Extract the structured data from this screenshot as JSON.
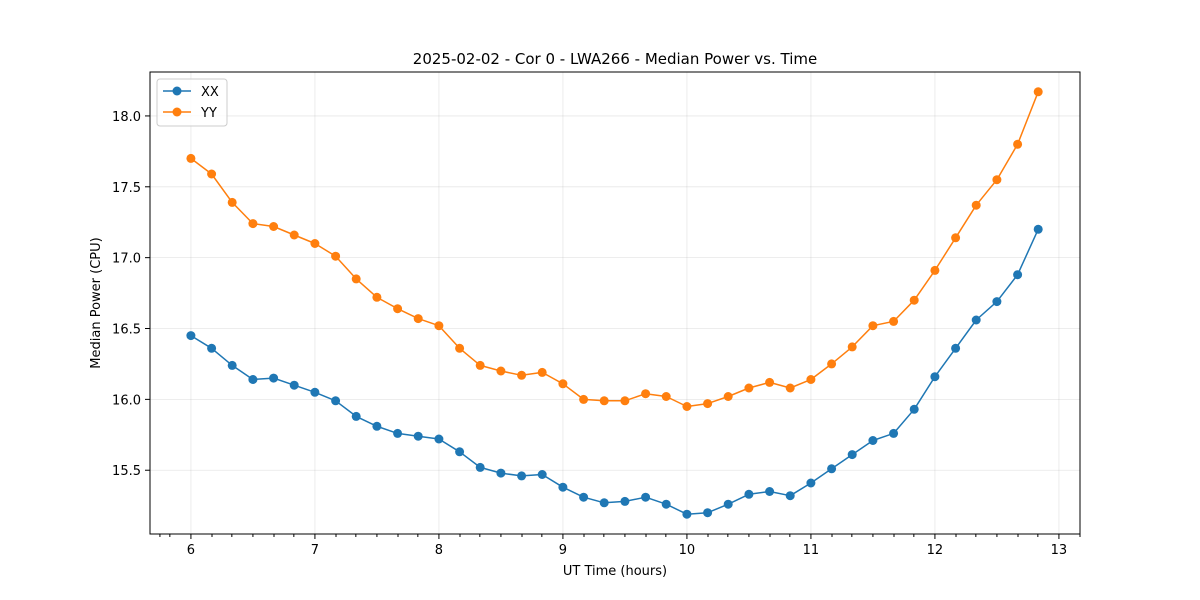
{
  "chart_data": {
    "type": "line",
    "title": "2025-02-02 - Cor 0 - LWA266 - Median Power vs. Time",
    "xlabel": "UT Time (hours)",
    "ylabel": "Median Power (CPU)",
    "xlim": [
      5.67,
      13.17
    ],
    "ylim": [
      15.05,
      18.31
    ],
    "x_ticks": [
      6,
      7,
      8,
      9,
      10,
      11,
      12,
      13
    ],
    "x_tick_labels": [
      "6",
      "7",
      "8",
      "9",
      "10",
      "11",
      "12",
      "13"
    ],
    "x_minor_ticks": [
      5.75,
      5.83,
      6.17,
      6.33,
      6.5,
      6.67,
      6.83,
      7.17,
      7.33,
      7.5,
      7.67,
      7.83,
      8.17,
      8.33,
      8.5,
      8.67,
      8.83,
      9.17,
      9.33,
      9.5,
      9.67,
      9.83,
      10.17,
      10.33,
      10.5,
      10.67,
      10.83,
      11.17,
      11.33,
      11.5,
      11.67,
      11.83,
      12.17,
      12.33,
      12.5,
      12.67,
      12.83,
      13.17
    ],
    "y_ticks": [
      15.5,
      16.0,
      16.5,
      17.0,
      17.5,
      18.0
    ],
    "y_tick_labels": [
      "15.5",
      "16.0",
      "16.5",
      "17.0",
      "17.5",
      "18.0"
    ],
    "grid": true,
    "legend_position": "top-left",
    "x": [
      6.0,
      6.167,
      6.333,
      6.5,
      6.667,
      6.833,
      7.0,
      7.167,
      7.333,
      7.5,
      7.667,
      7.833,
      8.0,
      8.167,
      8.333,
      8.5,
      8.667,
      8.833,
      9.0,
      9.167,
      9.333,
      9.5,
      9.667,
      9.833,
      10.0,
      10.167,
      10.333,
      10.5,
      10.667,
      10.833,
      11.0,
      11.167,
      11.333,
      11.5,
      11.667,
      11.833,
      12.0,
      12.167,
      12.333,
      12.5,
      12.667,
      12.833
    ],
    "series": [
      {
        "name": "XX",
        "color": "#1f77b4",
        "values": [
          16.45,
          16.36,
          16.24,
          16.14,
          16.15,
          16.1,
          16.05,
          15.99,
          15.88,
          15.81,
          15.76,
          15.74,
          15.72,
          15.63,
          15.52,
          15.48,
          15.46,
          15.47,
          15.38,
          15.31,
          15.27,
          15.28,
          15.31,
          15.26,
          15.19,
          15.2,
          15.26,
          15.33,
          15.35,
          15.32,
          15.41,
          15.51,
          15.61,
          15.71,
          15.76,
          15.93,
          16.16,
          16.36,
          16.56,
          16.69,
          16.88,
          17.2
        ]
      },
      {
        "name": "YY",
        "color": "#ff7f0e",
        "values": [
          17.7,
          17.59,
          17.39,
          17.24,
          17.22,
          17.16,
          17.1,
          17.01,
          16.85,
          16.72,
          16.64,
          16.57,
          16.52,
          16.36,
          16.24,
          16.2,
          16.17,
          16.19,
          16.11,
          16.0,
          15.99,
          15.99,
          16.04,
          16.02,
          15.95,
          15.97,
          16.02,
          16.08,
          16.12,
          16.08,
          16.14,
          16.25,
          16.37,
          16.52,
          16.55,
          16.7,
          16.91,
          17.14,
          17.37,
          17.55,
          17.8,
          18.17
        ]
      }
    ]
  }
}
